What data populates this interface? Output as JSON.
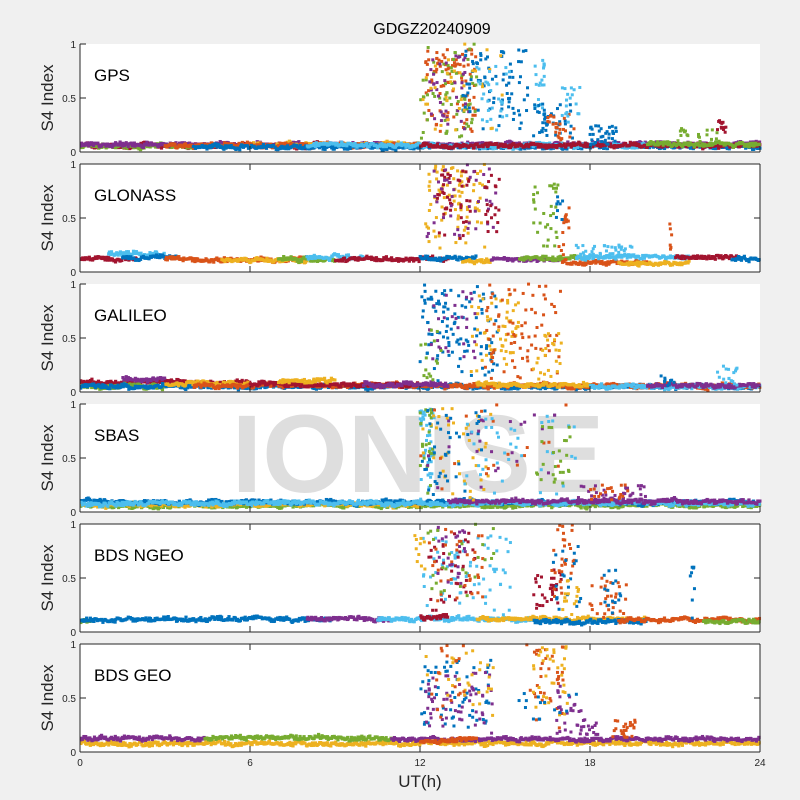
{
  "chart_data": {
    "type": "scatter",
    "title": "GDGZ20240909",
    "xlabel": "UT(h)",
    "xlim": [
      0,
      24
    ],
    "xticks": [
      "0",
      "6",
      "12",
      "18",
      "24"
    ],
    "xtick_values": [
      0,
      6,
      12,
      18,
      24
    ],
    "watermark": "IONISE",
    "series_colors": [
      "#0072bd",
      "#d95319",
      "#edb120",
      "#7e2f8e",
      "#77ac30",
      "#4dbeee",
      "#a2142f"
    ],
    "panels": [
      {
        "name": "GPS",
        "ylabel": "S4 Index",
        "ylim": [
          0,
          1
        ],
        "yticks": [
          "0",
          "0.5",
          "1"
        ],
        "boxed": false,
        "baseline": [
          {
            "color": 6,
            "from": 0,
            "to": 12,
            "level": 0.06
          },
          {
            "color": 4,
            "from": 0,
            "to": 4,
            "level": 0.05
          },
          {
            "color": 3,
            "from": 0,
            "to": 24,
            "level": 0.07
          },
          {
            "color": 2,
            "from": 6,
            "to": 12,
            "level": 0.07
          },
          {
            "color": 1,
            "from": 3,
            "to": 12,
            "level": 0.06
          },
          {
            "color": 0,
            "from": 4,
            "to": 24,
            "level": 0.05
          },
          {
            "color": 5,
            "from": 8,
            "to": 20,
            "level": 0.06
          },
          {
            "color": 6,
            "from": 12,
            "to": 24,
            "level": 0.06
          },
          {
            "color": 4,
            "from": 20,
            "to": 24,
            "level": 0.07
          }
        ],
        "bursts": [
          {
            "color": 1,
            "t0": 12.2,
            "t1": 14.0,
            "ymin": 0.15,
            "ymax": 0.95,
            "n": 90
          },
          {
            "color": 4,
            "t0": 12.0,
            "t1": 14.0,
            "ymin": 0.1,
            "ymax": 1.0,
            "n": 70
          },
          {
            "color": 3,
            "t0": 12.3,
            "t1": 13.8,
            "ymin": 0.2,
            "ymax": 0.9,
            "n": 40
          },
          {
            "color": 0,
            "t0": 13.5,
            "t1": 15.8,
            "ymin": 0.2,
            "ymax": 0.95,
            "n": 80
          },
          {
            "color": 2,
            "t0": 12.0,
            "t1": 15.0,
            "ymin": 0.1,
            "ymax": 1.0,
            "n": 35
          },
          {
            "color": 5,
            "t0": 14.0,
            "t1": 15.2,
            "ymin": 0.2,
            "ymax": 0.8,
            "n": 30
          },
          {
            "color": 5,
            "t0": 16.0,
            "t1": 16.4,
            "ymin": 0.3,
            "ymax": 0.85,
            "n": 20
          },
          {
            "color": 0,
            "t0": 16.0,
            "t1": 17.4,
            "ymin": 0.1,
            "ymax": 0.45,
            "n": 40
          },
          {
            "color": 1,
            "t0": 16.5,
            "t1": 17.5,
            "ymin": 0.1,
            "ymax": 0.35,
            "n": 25
          },
          {
            "color": 5,
            "t0": 17.0,
            "t1": 17.7,
            "ymin": 0.25,
            "ymax": 0.6,
            "n": 18
          },
          {
            "color": 0,
            "t0": 18.0,
            "t1": 19.0,
            "ymin": 0.05,
            "ymax": 0.25,
            "n": 35
          },
          {
            "color": 6,
            "t0": 22.5,
            "t1": 22.9,
            "ymin": 0.15,
            "ymax": 0.3,
            "n": 12
          },
          {
            "color": 4,
            "t0": 21.0,
            "t1": 22.5,
            "ymin": 0.08,
            "ymax": 0.22,
            "n": 20
          }
        ]
      },
      {
        "name": "GLONASS",
        "ylabel": "S4 Index",
        "ylim": [
          0,
          1
        ],
        "yticks": [
          "0",
          "0.5",
          "1"
        ],
        "boxed": true,
        "baseline": [
          {
            "color": 6,
            "from": 0,
            "to": 2,
            "level": 0.12
          },
          {
            "color": 5,
            "from": 1,
            "to": 3,
            "level": 0.17
          },
          {
            "color": 0,
            "from": 1.5,
            "to": 3.5,
            "level": 0.13
          },
          {
            "color": 1,
            "from": 3,
            "to": 8,
            "level": 0.12
          },
          {
            "color": 2,
            "from": 5,
            "to": 8,
            "level": 0.11
          },
          {
            "color": 4,
            "from": 7,
            "to": 9,
            "level": 0.12
          },
          {
            "color": 5,
            "from": 8,
            "to": 10,
            "level": 0.14
          },
          {
            "color": 6,
            "from": 9,
            "to": 13,
            "level": 0.12
          },
          {
            "color": 0,
            "from": 12,
            "to": 14,
            "level": 0.13
          },
          {
            "color": 2,
            "from": 13.5,
            "to": 14.5,
            "level": 0.1
          },
          {
            "color": 3,
            "from": 14.5,
            "to": 17,
            "level": 0.12
          },
          {
            "color": 4,
            "from": 15.5,
            "to": 18,
            "level": 0.13
          },
          {
            "color": 1,
            "from": 17,
            "to": 20,
            "level": 0.09
          },
          {
            "color": 5,
            "from": 17.5,
            "to": 21.5,
            "level": 0.14
          },
          {
            "color": 2,
            "from": 19,
            "to": 21.5,
            "level": 0.08
          },
          {
            "color": 6,
            "from": 21,
            "to": 23.2,
            "level": 0.14
          },
          {
            "color": 0,
            "from": 23,
            "to": 24,
            "level": 0.12
          }
        ],
        "bursts": [
          {
            "color": 2,
            "t0": 12.2,
            "t1": 14.3,
            "ymin": 0.2,
            "ymax": 1.0,
            "n": 90
          },
          {
            "color": 6,
            "t0": 12.6,
            "t1": 14.0,
            "ymin": 0.3,
            "ymax": 0.95,
            "n": 45
          },
          {
            "color": 3,
            "t0": 12.2,
            "t1": 14.8,
            "ymin": 0.25,
            "ymax": 1.0,
            "n": 40
          },
          {
            "color": 6,
            "t0": 14.3,
            "t1": 14.8,
            "ymin": 0.35,
            "ymax": 0.9,
            "n": 20
          },
          {
            "color": 4,
            "t0": 16.0,
            "t1": 16.9,
            "ymin": 0.2,
            "ymax": 0.85,
            "n": 30
          },
          {
            "color": 1,
            "t0": 16.9,
            "t1": 17.3,
            "ymin": 0.15,
            "ymax": 0.6,
            "n": 15
          },
          {
            "color": 0,
            "t0": 16.8,
            "t1": 17.1,
            "ymin": 0.4,
            "ymax": 0.7,
            "n": 8
          },
          {
            "color": 5,
            "t0": 17.3,
            "t1": 19.5,
            "ymin": 0.12,
            "ymax": 0.25,
            "n": 45
          },
          {
            "color": 1,
            "t0": 20.8,
            "t1": 20.9,
            "ymin": 0.2,
            "ymax": 0.5,
            "n": 6
          }
        ]
      },
      {
        "name": "GALILEO",
        "ylabel": "S4 Index",
        "ylim": [
          0,
          1
        ],
        "yticks": [
          "0",
          "0.5",
          "1"
        ],
        "boxed": false,
        "baseline": [
          {
            "color": 6,
            "from": 0,
            "to": 6,
            "level": 0.09
          },
          {
            "color": 4,
            "from": 0,
            "to": 3,
            "level": 0.05
          },
          {
            "color": 0,
            "from": 0,
            "to": 24,
            "level": 0.05
          },
          {
            "color": 3,
            "from": 1.5,
            "to": 3,
            "level": 0.12
          },
          {
            "color": 2,
            "from": 3,
            "to": 6,
            "level": 0.08
          },
          {
            "color": 1,
            "from": 4,
            "to": 24,
            "level": 0.06
          },
          {
            "color": 6,
            "from": 6,
            "to": 12,
            "level": 0.07
          },
          {
            "color": 2,
            "from": 7,
            "to": 9,
            "level": 0.1
          },
          {
            "color": 3,
            "from": 10,
            "to": 13,
            "level": 0.07
          },
          {
            "color": 2,
            "from": 14,
            "to": 18,
            "level": 0.07
          },
          {
            "color": 5,
            "from": 18,
            "to": 24,
            "level": 0.05
          },
          {
            "color": 3,
            "from": 20,
            "to": 24,
            "level": 0.06
          }
        ],
        "bursts": [
          {
            "color": 0,
            "t0": 12.0,
            "t1": 14.8,
            "ymin": 0.1,
            "ymax": 1.0,
            "n": 110
          },
          {
            "color": 3,
            "t0": 12.3,
            "t1": 14.0,
            "ymin": 0.3,
            "ymax": 0.95,
            "n": 30
          },
          {
            "color": 4,
            "t0": 12.0,
            "t1": 12.8,
            "ymin": 0.1,
            "ymax": 0.6,
            "n": 15
          },
          {
            "color": 2,
            "t0": 13.8,
            "t1": 15.5,
            "ymin": 0.08,
            "ymax": 0.9,
            "n": 60
          },
          {
            "color": 1,
            "t0": 14.3,
            "t1": 17.0,
            "ymin": 0.08,
            "ymax": 1.0,
            "n": 75
          },
          {
            "color": 2,
            "t0": 16.0,
            "t1": 17.0,
            "ymin": 0.1,
            "ymax": 0.55,
            "n": 25
          },
          {
            "color": 0,
            "t0": 20.5,
            "t1": 21.0,
            "ymin": 0.05,
            "ymax": 0.15,
            "n": 10
          },
          {
            "color": 5,
            "t0": 22.5,
            "t1": 23.2,
            "ymin": 0.05,
            "ymax": 0.25,
            "n": 18
          }
        ]
      },
      {
        "name": "SBAS",
        "ylabel": "S4 Index",
        "ylim": [
          0,
          1
        ],
        "yticks": [
          "0",
          "0.5",
          "1"
        ],
        "boxed": false,
        "baseline": [
          {
            "color": 4,
            "from": 0,
            "to": 24,
            "level": 0.06
          },
          {
            "color": 2,
            "from": 0,
            "to": 12,
            "level": 0.07
          },
          {
            "color": 0,
            "from": 0,
            "to": 24,
            "level": 0.09
          },
          {
            "color": 5,
            "from": 0,
            "to": 24,
            "level": 0.08
          },
          {
            "color": 3,
            "from": 13,
            "to": 24,
            "level": 0.1
          }
        ],
        "bursts": [
          {
            "color": 5,
            "t0": 12.0,
            "t1": 12.5,
            "ymin": 0.1,
            "ymax": 1.0,
            "n": 40
          },
          {
            "color": 4,
            "t0": 12.0,
            "t1": 12.5,
            "ymin": 0.15,
            "ymax": 0.95,
            "n": 25
          },
          {
            "color": 2,
            "t0": 12.0,
            "t1": 14.5,
            "ymin": 0.1,
            "ymax": 1.0,
            "n": 40
          },
          {
            "color": 0,
            "t0": 12.0,
            "t1": 14.5,
            "ymin": 0.1,
            "ymax": 0.95,
            "n": 40
          },
          {
            "color": 3,
            "t0": 12.1,
            "t1": 17.0,
            "ymin": 0.2,
            "ymax": 0.9,
            "n": 25
          },
          {
            "color": 1,
            "t0": 12.0,
            "t1": 17.5,
            "ymin": 0.1,
            "ymax": 1.0,
            "n": 20
          },
          {
            "color": 5,
            "t0": 13.5,
            "t1": 17.5,
            "ymin": 0.15,
            "ymax": 0.9,
            "n": 40
          },
          {
            "color": 4,
            "t0": 16.0,
            "t1": 17.3,
            "ymin": 0.2,
            "ymax": 0.8,
            "n": 25
          },
          {
            "color": 3,
            "t0": 17.5,
            "t1": 20.0,
            "ymin": 0.08,
            "ymax": 0.25,
            "n": 35
          },
          {
            "color": 1,
            "t0": 18.0,
            "t1": 19.5,
            "ymin": 0.1,
            "ymax": 0.25,
            "n": 20
          }
        ]
      },
      {
        "name": "BDS NGEO",
        "ylabel": "S4 Index",
        "ylim": [
          0,
          1
        ],
        "yticks": [
          "0",
          "0.5",
          "1"
        ],
        "boxed": true,
        "baseline": [
          {
            "color": 4,
            "from": 0,
            "to": 0.5,
            "level": 0.1
          },
          {
            "color": 0,
            "from": 0,
            "to": 9,
            "level": 0.12
          },
          {
            "color": 3,
            "from": 8,
            "to": 11,
            "level": 0.12
          },
          {
            "color": 5,
            "from": 10.5,
            "to": 16,
            "level": 0.12
          },
          {
            "color": 6,
            "from": 12,
            "to": 13,
            "level": 0.14
          },
          {
            "color": 2,
            "from": 14,
            "to": 20,
            "level": 0.12
          },
          {
            "color": 0,
            "from": 16,
            "to": 20,
            "level": 0.1
          },
          {
            "color": 1,
            "from": 19,
            "to": 24,
            "level": 0.11
          },
          {
            "color": 4,
            "from": 22,
            "to": 24,
            "level": 0.1
          }
        ],
        "bursts": [
          {
            "color": 5,
            "t0": 12.1,
            "t1": 15.2,
            "ymin": 0.15,
            "ymax": 0.9,
            "n": 70
          },
          {
            "color": 6,
            "t0": 12.2,
            "t1": 14.0,
            "ymin": 0.2,
            "ymax": 0.95,
            "n": 35
          },
          {
            "color": 1,
            "t0": 12.3,
            "t1": 14.3,
            "ymin": 0.2,
            "ymax": 0.95,
            "n": 35
          },
          {
            "color": 3,
            "t0": 12.6,
            "t1": 13.6,
            "ymin": 0.4,
            "ymax": 1.0,
            "n": 25
          },
          {
            "color": 4,
            "t0": 12.2,
            "t1": 14.7,
            "ymin": 0.3,
            "ymax": 1.0,
            "n": 25
          },
          {
            "color": 2,
            "t0": 11.8,
            "t1": 12.2,
            "ymin": 0.5,
            "ymax": 0.9,
            "n": 10
          },
          {
            "color": 6,
            "t0": 16.0,
            "t1": 17.0,
            "ymin": 0.2,
            "ymax": 0.6,
            "n": 30
          },
          {
            "color": 1,
            "t0": 16.6,
            "t1": 17.5,
            "ymin": 0.3,
            "ymax": 1.0,
            "n": 30
          },
          {
            "color": 0,
            "t0": 16.6,
            "t1": 17.8,
            "ymin": 0.2,
            "ymax": 0.8,
            "n": 20
          },
          {
            "color": 2,
            "t0": 17.0,
            "t1": 17.6,
            "ymin": 0.15,
            "ymax": 0.5,
            "n": 15
          },
          {
            "color": 1,
            "t0": 18.0,
            "t1": 19.3,
            "ymin": 0.1,
            "ymax": 0.5,
            "n": 30
          },
          {
            "color": 0,
            "t0": 18.5,
            "t1": 19.2,
            "ymin": 0.15,
            "ymax": 0.6,
            "n": 15
          },
          {
            "color": 0,
            "t0": 21.5,
            "t1": 21.7,
            "ymin": 0.1,
            "ymax": 0.6,
            "n": 8
          }
        ]
      },
      {
        "name": "BDS GEO",
        "ylabel": "S4 Index",
        "ylim": [
          0,
          1
        ],
        "yticks": [
          "0",
          "0.5",
          "1"
        ],
        "boxed": true,
        "baseline": [
          {
            "color": 2,
            "from": 0,
            "to": 24,
            "level": 0.08
          },
          {
            "color": 3,
            "from": 0,
            "to": 4.4,
            "level": 0.13
          },
          {
            "color": 4,
            "from": 4.4,
            "to": 11,
            "level": 0.13
          },
          {
            "color": 3,
            "from": 11,
            "to": 24,
            "level": 0.12
          },
          {
            "color": 1,
            "from": 12,
            "to": 14,
            "level": 0.11
          }
        ],
        "bursts": [
          {
            "color": 0,
            "t0": 12.0,
            "t1": 14.5,
            "ymin": 0.2,
            "ymax": 0.85,
            "n": 60
          },
          {
            "color": 3,
            "t0": 12.2,
            "t1": 14.6,
            "ymin": 0.15,
            "ymax": 0.75,
            "n": 60
          },
          {
            "color": 2,
            "t0": 12.2,
            "t1": 14.6,
            "ymin": 0.3,
            "ymax": 1.0,
            "n": 30
          },
          {
            "color": 1,
            "t0": 12.3,
            "t1": 13.6,
            "ymin": 0.3,
            "ymax": 1.0,
            "n": 20
          },
          {
            "color": 1,
            "t0": 15.7,
            "t1": 17.2,
            "ymin": 0.2,
            "ymax": 1.0,
            "n": 35
          },
          {
            "color": 2,
            "t0": 16.0,
            "t1": 17.2,
            "ymin": 0.3,
            "ymax": 1.0,
            "n": 35
          },
          {
            "color": 3,
            "t0": 16.8,
            "t1": 17.7,
            "ymin": 0.15,
            "ymax": 0.65,
            "n": 25
          },
          {
            "color": 0,
            "t0": 15.2,
            "t1": 17.6,
            "ymin": 0.25,
            "ymax": 0.55,
            "n": 15
          },
          {
            "color": 1,
            "t0": 18.8,
            "t1": 19.6,
            "ymin": 0.12,
            "ymax": 0.3,
            "n": 25
          },
          {
            "color": 3,
            "t0": 17.5,
            "t1": 18.3,
            "ymin": 0.12,
            "ymax": 0.3,
            "n": 20
          }
        ]
      }
    ]
  }
}
